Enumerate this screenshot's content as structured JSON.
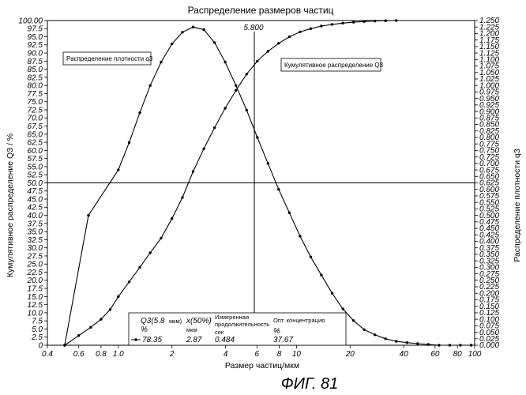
{
  "chart_data": {
    "type": "line",
    "title": "Распределение размеров частиц",
    "xlabel": "Размер частиц/мкм",
    "ylabel": "Кумулятивное распределение Q3 / %",
    "y2label": "Распределение плотности q3",
    "x_scale": "log",
    "xlim": [
      0.4,
      100
    ],
    "ylim": [
      0,
      100
    ],
    "y2lim": [
      0,
      1.25
    ],
    "x_ticks": [
      {
        "value": 0.4,
        "label": "0.4"
      },
      {
        "value": 0.6,
        "label": "0.6"
      },
      {
        "value": 0.8,
        "label": "0.8"
      },
      {
        "value": 1.0,
        "label": "1.0"
      },
      {
        "value": 2,
        "label": "2"
      },
      {
        "value": 4,
        "label": "4"
      },
      {
        "value": 6,
        "label": "6"
      },
      {
        "value": 8,
        "label": "8"
      },
      {
        "value": 10,
        "label": "10"
      },
      {
        "value": 20,
        "label": "20"
      },
      {
        "value": 40,
        "label": "40"
      },
      {
        "value": 60,
        "label": "60"
      },
      {
        "value": 80,
        "label": "80"
      },
      {
        "value": 100,
        "label": "100"
      }
    ],
    "y_ticks": [
      "0",
      "2.5",
      "5.0",
      "7.5",
      "10.0",
      "12.5",
      "15.0",
      "17.5",
      "20.0",
      "22.5",
      "25.0",
      "27.5",
      "30.0",
      "32.5",
      "35.0",
      "37.5",
      "40.0",
      "42.5",
      "45.0",
      "47.5",
      "50.0",
      "52.5",
      "55.0",
      "57.5",
      "60.0",
      "62.5",
      "65.0",
      "67.5",
      "70.0",
      "72.5",
      "75.0",
      "77.5",
      "80.0",
      "82.5",
      "85.0",
      "87.5",
      "90.0",
      "92.5",
      "95.0",
      "97.5",
      "100.00"
    ],
    "y2_ticks": [
      "0.000",
      "0.025",
      "0.050",
      "0.075",
      "0.100",
      "0.125",
      "0.150",
      "0.175",
      "0.200",
      "0.225",
      "0.250",
      "0.275",
      "0.300",
      "0.325",
      "0.350",
      "0.375",
      "0.400",
      "0.425",
      "0.450",
      "0.475",
      "0.500",
      "0.525",
      "0.550",
      "0.575",
      "0.600",
      "0.625",
      "0.650",
      "0.675",
      "0.700",
      "0.725",
      "0.750",
      "0.775",
      "0.800",
      "0.825",
      "0.850",
      "0.875",
      "0.900",
      "0.925",
      "0.950",
      "0.975",
      "1.000",
      "1.025",
      "1.050",
      "1.075",
      "1.100",
      "1.125",
      "1.150",
      "1.175",
      "1.200",
      "1.225",
      "1.250"
    ],
    "series": [
      {
        "name": "Кумулятивное распределение Q3",
        "axis": "left",
        "x": [
          0.5,
          0.6,
          0.7,
          0.8,
          0.9,
          1.0,
          1.15,
          1.32,
          1.51,
          1.74,
          2.0,
          2.29,
          2.63,
          3.02,
          3.47,
          3.98,
          4.57,
          5.25,
          6.03,
          6.92,
          7.94,
          9.12,
          10.47,
          12.02,
          13.8,
          15.85,
          18.2,
          20.89,
          23.99,
          27.54,
          31.62,
          36.31
        ],
        "y": [
          0,
          3,
          5.5,
          8,
          11,
          15,
          19.5,
          24,
          28.5,
          33,
          39,
          45.5,
          53.5,
          60.5,
          67,
          73,
          78.5,
          83.5,
          87.5,
          90.5,
          93,
          95,
          96.5,
          97.5,
          98.3,
          98.8,
          99.2,
          99.5,
          99.7,
          99.85,
          99.95,
          100
        ]
      },
      {
        "name": "Распределение плотности q3",
        "axis": "right",
        "x": [
          0.5,
          0.68,
          1.0,
          1.15,
          1.32,
          1.51,
          1.74,
          2.0,
          2.29,
          2.63,
          3.02,
          3.47,
          3.98,
          4.57,
          5.25,
          6.03,
          6.92,
          7.94,
          9.12,
          10.47,
          12.02,
          13.8,
          15.85,
          18.2,
          20.89,
          23.99,
          27.54,
          31.62,
          36.31,
          41.69,
          47.86,
          54.95,
          63.1,
          72.44,
          83.18,
          95.5
        ],
        "y": [
          0,
          0.5,
          0.675,
          0.78,
          0.895,
          1.0,
          1.09,
          1.16,
          1.205,
          1.225,
          1.215,
          1.165,
          1.09,
          1.0,
          0.905,
          0.8,
          0.7,
          0.6,
          0.51,
          0.42,
          0.34,
          0.27,
          0.2,
          0.14,
          0.095,
          0.06,
          0.04,
          0.025,
          0.015,
          0.01,
          0.006,
          0.003,
          0.0,
          0.0,
          0.0,
          0.0
        ]
      }
    ],
    "marker_line": {
      "x": 5.8,
      "label": "5.800"
    },
    "horizontal_line": {
      "y": 50
    },
    "annotations": {
      "density_label": "Распределение плотности q3",
      "cumulative_label": "Кумулятивное распределение Q3"
    },
    "stats": {
      "q3_head": "Q3(5.8",
      "q3_unit_suffix": "мкм)",
      "q3_unit": "%",
      "q3_value": "78.35",
      "x50_head": "x(50%)",
      "x50_unit": "мкм",
      "x50_value": "2.87",
      "meas_head_1": "Измеренная",
      "meas_head_2": "продолжительность",
      "meas_unit": "сек",
      "meas_value": "0.484",
      "opt_head": "Опт. концентрация",
      "opt_unit": "%",
      "opt_value": "37.67"
    }
  },
  "caption": "ФИГ. 81"
}
